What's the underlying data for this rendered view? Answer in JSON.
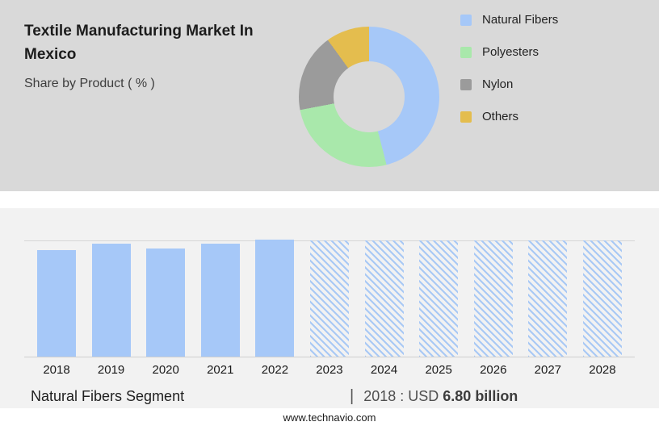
{
  "header": {
    "title": "Textile Manufacturing Market In Mexico",
    "subtitle": "Share by Product ( % )"
  },
  "colors": {
    "top_background": "#d9d9d9",
    "bottom_background": "#f2f2f2",
    "bar_blue": "#a6c8f8",
    "hatch_blue": "#a9c9f5"
  },
  "chart_data": [
    {
      "type": "pie",
      "subtype": "donut",
      "title": "Share by Product ( % )",
      "legend_position": "right",
      "segments": [
        {
          "label": "Natural Fibers",
          "value": 46,
          "color": "#a6c8f8"
        },
        {
          "label": "Polyesters",
          "value": 26,
          "color": "#a9e8ab"
        },
        {
          "label": "Nylon",
          "value": 18,
          "color": "#9b9b9b"
        },
        {
          "label": "Others",
          "value": 10,
          "color": "#e4bd4e"
        }
      ]
    },
    {
      "type": "bar",
      "title": "Natural Fibers Segment",
      "categories": [
        "2018",
        "2019",
        "2020",
        "2021",
        "2022",
        "2023",
        "2024",
        "2025",
        "2026",
        "2027",
        "2028"
      ],
      "values": [
        92,
        97,
        93,
        97,
        101,
        100,
        100,
        100,
        100,
        100,
        100
      ],
      "forecast_categories": [
        "2023",
        "2024",
        "2025",
        "2026",
        "2027",
        "2028"
      ],
      "xlabel": "",
      "ylabel": "",
      "ylim": [
        0,
        101
      ],
      "grid": "single top gridline, baseline"
    }
  ],
  "footer": {
    "segment_label": "Natural Fibers Segment",
    "separator": "|",
    "year_label": "2018 : USD",
    "value_label": "6.80 billion",
    "website": "www.technavio.com"
  }
}
